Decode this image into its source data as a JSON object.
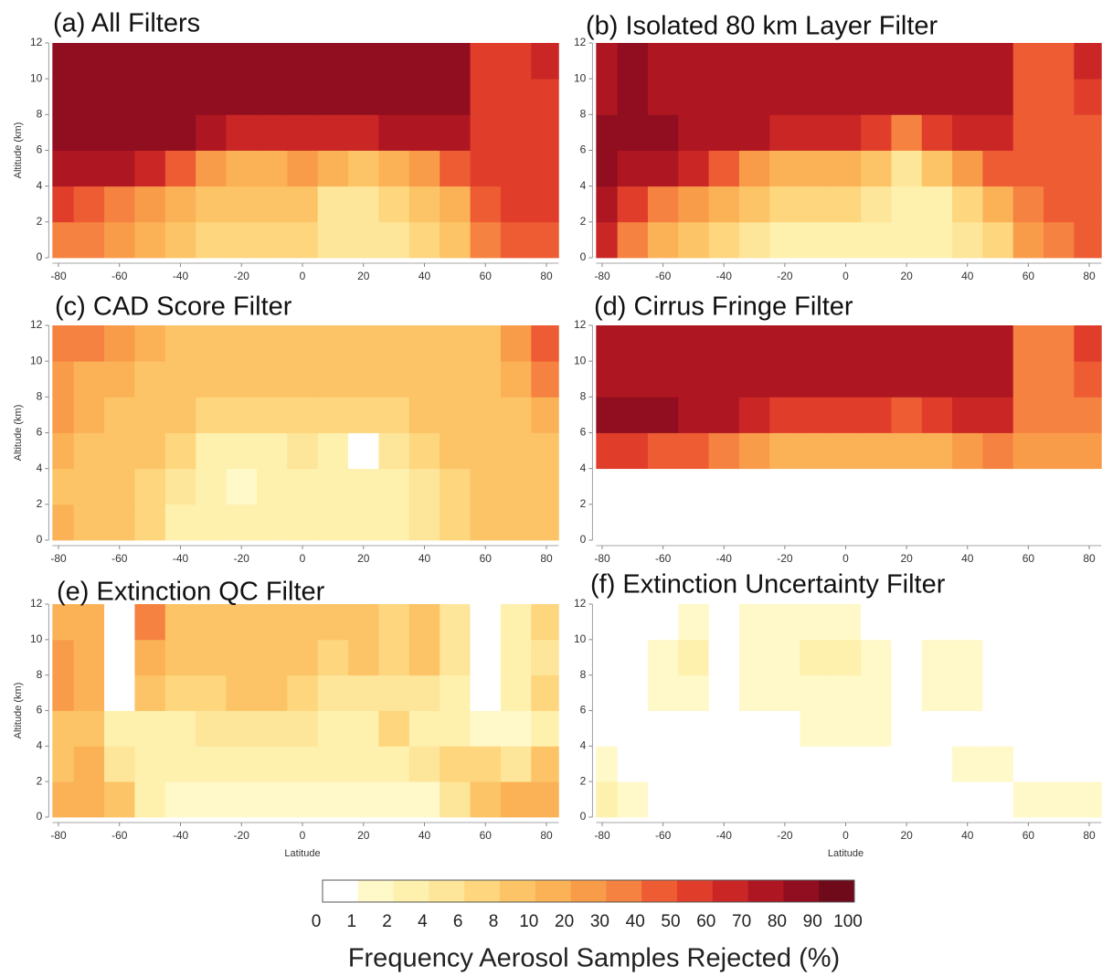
{
  "chart_data": [
    {
      "type": "heatmap",
      "title": "(a) All Filters",
      "ylabel": "Altitude (km)",
      "x": [
        -80,
        -70,
        -60,
        -50,
        -40,
        -30,
        -20,
        -10,
        0,
        10,
        20,
        30,
        40,
        50,
        60,
        70,
        80
      ],
      "y": [
        1,
        3,
        5,
        7,
        9,
        11
      ],
      "values": [
        [
          40,
          35,
          25,
          15,
          9,
          7,
          7,
          7,
          7,
          5,
          5,
          5,
          7,
          9,
          35,
          45,
          45
        ],
        [
          55,
          45,
          35,
          25,
          15,
          9,
          9,
          9,
          9,
          5,
          5,
          7,
          9,
          15,
          45,
          55,
          55
        ],
        [
          75,
          75,
          75,
          65,
          45,
          25,
          15,
          15,
          25,
          15,
          9,
          15,
          25,
          45,
          55,
          55,
          55
        ],
        [
          85,
          85,
          85,
          85,
          85,
          75,
          65,
          65,
          65,
          65,
          65,
          75,
          75,
          75,
          55,
          55,
          55
        ],
        [
          85,
          85,
          85,
          85,
          85,
          85,
          85,
          85,
          85,
          85,
          85,
          85,
          85,
          85,
          55,
          55,
          55
        ],
        [
          85,
          85,
          85,
          85,
          85,
          85,
          85,
          85,
          85,
          85,
          85,
          85,
          85,
          85,
          55,
          55,
          65
        ]
      ],
      "xlim": [
        -82,
        84
      ],
      "ylim": [
        0,
        12
      ],
      "xticks": [
        -80,
        -60,
        -40,
        -20,
        0,
        20,
        40,
        60,
        80
      ],
      "yticks": [
        0,
        2,
        4,
        6,
        8,
        10,
        12
      ]
    },
    {
      "type": "heatmap",
      "title": "(b) Isolated 80 km Layer Filter",
      "x": [
        -80,
        -70,
        -60,
        -50,
        -40,
        -30,
        -20,
        -10,
        0,
        10,
        20,
        30,
        40,
        50,
        60,
        70,
        80
      ],
      "y": [
        1,
        3,
        5,
        7,
        9,
        11
      ],
      "values": [
        [
          65,
          35,
          15,
          9,
          7,
          5,
          3,
          3,
          3,
          3,
          3,
          3,
          5,
          7,
          25,
          35,
          45
        ],
        [
          75,
          55,
          35,
          25,
          15,
          9,
          7,
          7,
          7,
          5,
          3,
          3,
          7,
          15,
          35,
          45,
          45
        ],
        [
          85,
          75,
          75,
          65,
          45,
          25,
          15,
          15,
          15,
          9,
          5,
          9,
          25,
          45,
          45,
          45,
          45
        ],
        [
          85,
          85,
          85,
          75,
          75,
          75,
          65,
          65,
          65,
          55,
          35,
          55,
          65,
          65,
          45,
          45,
          45
        ],
        [
          75,
          85,
          75,
          75,
          75,
          75,
          75,
          75,
          75,
          75,
          75,
          75,
          75,
          75,
          45,
          45,
          55
        ],
        [
          75,
          85,
          75,
          75,
          75,
          75,
          75,
          75,
          75,
          75,
          75,
          75,
          75,
          75,
          45,
          45,
          65
        ]
      ],
      "xlim": [
        -82,
        84
      ],
      "ylim": [
        0,
        12
      ],
      "xticks": [
        -80,
        -60,
        -40,
        -20,
        0,
        20,
        40,
        60,
        80
      ],
      "yticks": [
        0,
        2,
        4,
        6,
        8,
        10,
        12
      ]
    },
    {
      "type": "heatmap",
      "title": "(c) CAD Score Filter",
      "ylabel": "Altitude (km)",
      "x": [
        -80,
        -70,
        -60,
        -50,
        -40,
        -30,
        -20,
        -10,
        0,
        10,
        20,
        30,
        40,
        50,
        60,
        70,
        80
      ],
      "y": [
        1,
        3,
        5,
        7,
        9,
        11
      ],
      "values": [
        [
          15,
          9,
          9,
          7,
          3,
          3,
          3,
          3,
          3,
          3,
          3,
          3,
          5,
          7,
          9,
          9,
          9
        ],
        [
          9,
          9,
          9,
          7,
          5,
          3,
          1.5,
          3,
          3,
          3,
          3,
          3,
          5,
          7,
          9,
          9,
          9
        ],
        [
          15,
          9,
          9,
          9,
          7,
          3,
          3,
          3,
          5,
          3,
          0.5,
          5,
          7,
          9,
          9,
          9,
          9
        ],
        [
          25,
          15,
          9,
          9,
          9,
          7,
          7,
          7,
          7,
          7,
          7,
          7,
          9,
          9,
          9,
          9,
          15
        ],
        [
          25,
          15,
          15,
          9,
          9,
          9,
          9,
          9,
          9,
          9,
          9,
          9,
          9,
          9,
          9,
          15,
          35
        ],
        [
          35,
          35,
          25,
          15,
          9,
          9,
          9,
          9,
          9,
          9,
          9,
          9,
          9,
          9,
          9,
          25,
          45
        ]
      ],
      "xlim": [
        -82,
        84
      ],
      "ylim": [
        0,
        12
      ],
      "xticks": [
        -80,
        -60,
        -40,
        -20,
        0,
        20,
        40,
        60,
        80
      ],
      "yticks": [
        0,
        2,
        4,
        6,
        8,
        10,
        12
      ]
    },
    {
      "type": "heatmap",
      "title": "(d) Cirrus Fringe Filter",
      "x": [
        -80,
        -70,
        -60,
        -50,
        -40,
        -30,
        -20,
        -10,
        0,
        10,
        20,
        30,
        40,
        50,
        60,
        70,
        80
      ],
      "y": [
        1,
        3,
        5,
        7,
        9,
        11
      ],
      "values": [
        [
          0,
          0,
          0,
          0,
          0,
          0,
          0,
          0,
          0,
          0,
          0,
          0,
          0,
          0,
          0,
          0,
          0
        ],
        [
          0,
          0,
          0,
          0,
          0,
          0,
          0,
          0,
          0,
          0,
          0,
          0,
          0,
          0,
          0,
          0,
          0
        ],
        [
          55,
          55,
          45,
          45,
          35,
          25,
          15,
          15,
          15,
          15,
          15,
          15,
          25,
          35,
          25,
          25,
          25
        ],
        [
          85,
          85,
          85,
          75,
          75,
          65,
          55,
          55,
          55,
          55,
          45,
          55,
          65,
          65,
          35,
          35,
          35
        ],
        [
          75,
          75,
          75,
          75,
          75,
          75,
          75,
          75,
          75,
          75,
          75,
          75,
          75,
          75,
          35,
          35,
          45
        ],
        [
          75,
          75,
          75,
          75,
          75,
          75,
          75,
          75,
          75,
          75,
          75,
          75,
          75,
          75,
          35,
          35,
          55
        ]
      ],
      "xlim": [
        -82,
        84
      ],
      "ylim": [
        0,
        12
      ],
      "xticks": [
        -80,
        -60,
        -40,
        -20,
        0,
        20,
        40,
        60,
        80
      ],
      "yticks": [
        0,
        2,
        4,
        6,
        8,
        10,
        12
      ]
    },
    {
      "type": "heatmap",
      "title": "(e) Extinction QC Filter",
      "ylabel": "Altitude (km)",
      "xlabel": "Latitude",
      "x": [
        -80,
        -70,
        -60,
        -50,
        -40,
        -30,
        -20,
        -10,
        0,
        10,
        20,
        30,
        40,
        50,
        60,
        70,
        80
      ],
      "y": [
        1,
        3,
        5,
        7,
        9,
        11
      ],
      "values": [
        [
          15,
          15,
          9,
          3,
          1.5,
          1.5,
          1.5,
          1.5,
          1.5,
          1.5,
          1.5,
          1.5,
          1.5,
          5,
          9,
          15,
          15
        ],
        [
          9,
          15,
          5,
          3,
          3,
          3,
          3,
          3,
          3,
          3,
          3,
          3,
          5,
          7,
          7,
          5,
          9
        ],
        [
          9,
          9,
          3,
          3,
          3,
          5,
          5,
          5,
          5,
          3,
          3,
          7,
          3,
          3,
          1.5,
          1.5,
          3
        ],
        [
          25,
          15,
          0.5,
          9,
          7,
          7,
          9,
          9,
          7,
          5,
          5,
          5,
          5,
          3,
          0.5,
          3,
          7
        ],
        [
          25,
          15,
          0.5,
          15,
          9,
          9,
          9,
          9,
          9,
          7,
          9,
          7,
          9,
          5,
          0.5,
          3,
          5
        ],
        [
          15,
          15,
          0.5,
          35,
          9,
          9,
          9,
          9,
          9,
          9,
          9,
          7,
          9,
          5,
          0.5,
          3,
          7
        ]
      ],
      "xlim": [
        -82,
        84
      ],
      "ylim": [
        0,
        12
      ],
      "xticks": [
        -80,
        -60,
        -40,
        -20,
        0,
        20,
        40,
        60,
        80
      ],
      "yticks": [
        0,
        2,
        4,
        6,
        8,
        10,
        12
      ]
    },
    {
      "type": "heatmap",
      "title": "(f) Extinction Uncertainty Filter",
      "xlabel": "Latitude",
      "x": [
        -80,
        -70,
        -60,
        -50,
        -40,
        -30,
        -20,
        -10,
        0,
        10,
        20,
        30,
        40,
        50,
        60,
        70,
        80
      ],
      "y": [
        1,
        3,
        5,
        7,
        9,
        11
      ],
      "values": [
        [
          3,
          1.5,
          0.5,
          0.5,
          0.5,
          0.5,
          0.5,
          0.5,
          0.5,
          0.5,
          0.5,
          0.5,
          0.5,
          0.5,
          1.5,
          1.5,
          1.5
        ],
        [
          1.5,
          0.5,
          0.5,
          0.5,
          0.5,
          0.5,
          0.5,
          0.5,
          0.5,
          0.5,
          0.5,
          0.5,
          1.5,
          1.5,
          0.5,
          0.5,
          0.5
        ],
        [
          0.5,
          0.5,
          0.5,
          0.5,
          0.5,
          0.5,
          0.5,
          1.5,
          1.5,
          1.5,
          0.5,
          0.5,
          0.5,
          0.5,
          0.5,
          0.5,
          0.5
        ],
        [
          0.5,
          0.5,
          1.5,
          1.5,
          0.5,
          1.5,
          1.5,
          1.5,
          1.5,
          1.5,
          0.5,
          1.5,
          1.5,
          0.5,
          0.5,
          0.5,
          0.5
        ],
        [
          0.5,
          0.5,
          1.5,
          3,
          0.5,
          1.5,
          1.5,
          3,
          3,
          1.5,
          0.5,
          1.5,
          1.5,
          0.5,
          0.5,
          0.5,
          0.5
        ],
        [
          0.5,
          0.5,
          0.5,
          1.5,
          0.5,
          1.5,
          1.5,
          1.5,
          1.5,
          0.5,
          0.5,
          0.5,
          0.5,
          0.5,
          0.5,
          0.5,
          0.5
        ]
      ],
      "xlim": [
        -82,
        84
      ],
      "ylim": [
        0,
        12
      ],
      "xticks": [
        -80,
        -60,
        -40,
        -20,
        0,
        20,
        40,
        60,
        80
      ],
      "yticks": [
        0,
        2,
        4,
        6,
        8,
        10,
        12
      ]
    },
    {
      "type": "colorbar",
      "label": "Frequency Aerosol Samples Rejected (%)",
      "bounds": [
        0,
        1,
        2,
        4,
        6,
        8,
        10,
        20,
        30,
        40,
        50,
        60,
        70,
        80,
        90,
        100
      ],
      "colors": [
        "#ffffff",
        "#fff8c8",
        "#fef0ad",
        "#fde59a",
        "#fdd67d",
        "#fcc466",
        "#fbb257",
        "#f99c4a",
        "#f58240",
        "#ee5c33",
        "#e03e2b",
        "#c92625",
        "#ae1621",
        "#900e1f",
        "#6f0a1a"
      ]
    }
  ]
}
